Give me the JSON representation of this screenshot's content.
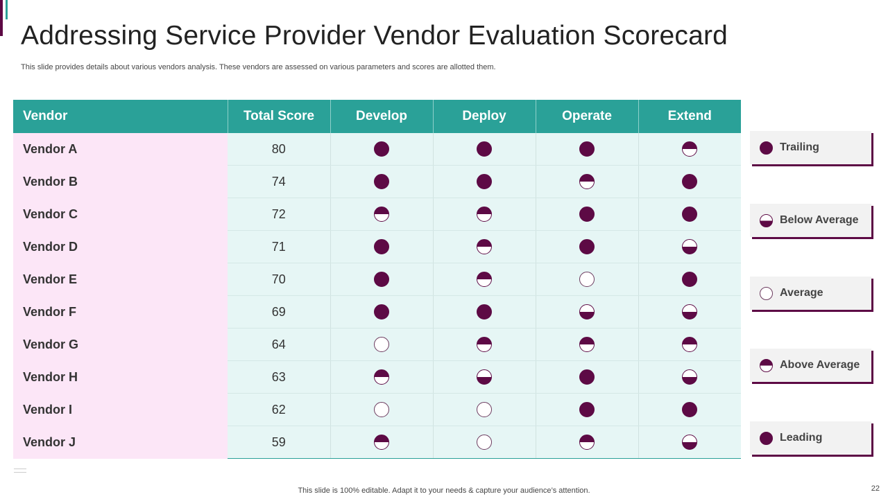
{
  "title": "Addressing Service Provider Vendor Evaluation Scorecard",
  "subtitle": "This slide provides details about various vendors analysis. These vendors are assessed on various parameters and scores are allotted them.",
  "table": {
    "headers": [
      "Vendor",
      "Total Score",
      "Develop",
      "Deploy",
      "Operate",
      "Extend"
    ],
    "rows": [
      {
        "vendor": "Vendor A",
        "score": "80",
        "develop": "leading",
        "deploy": "leading",
        "operate": "leading",
        "extend": "above"
      },
      {
        "vendor": "Vendor B",
        "score": "74",
        "develop": "leading",
        "deploy": "leading",
        "operate": "above",
        "extend": "leading"
      },
      {
        "vendor": "Vendor C",
        "score": "72",
        "develop": "above",
        "deploy": "above",
        "operate": "leading",
        "extend": "leading"
      },
      {
        "vendor": "Vendor D",
        "score": "71",
        "develop": "leading",
        "deploy": "above",
        "operate": "leading",
        "extend": "below"
      },
      {
        "vendor": "Vendor E",
        "score": "70",
        "develop": "leading",
        "deploy": "above",
        "operate": "average",
        "extend": "leading"
      },
      {
        "vendor": "Vendor F",
        "score": "69",
        "develop": "leading",
        "deploy": "leading",
        "operate": "below",
        "extend": "below"
      },
      {
        "vendor": "Vendor G",
        "score": "64",
        "develop": "average",
        "deploy": "above",
        "operate": "above",
        "extend": "above"
      },
      {
        "vendor": "Vendor H",
        "score": "63",
        "develop": "above",
        "deploy": "below",
        "operate": "leading",
        "extend": "below"
      },
      {
        "vendor": "Vendor I",
        "score": "62",
        "develop": "average",
        "deploy": "average",
        "operate": "leading",
        "extend": "leading"
      },
      {
        "vendor": "Vendor J",
        "score": "59",
        "develop": "above",
        "deploy": "average",
        "operate": "above",
        "extend": "below"
      }
    ]
  },
  "legend": [
    {
      "key": "trailing",
      "label": "Trailing"
    },
    {
      "key": "below",
      "label": "Below Average"
    },
    {
      "key": "average",
      "label": "Average"
    },
    {
      "key": "above",
      "label": "Above Average"
    },
    {
      "key": "leading",
      "label": "Leading"
    }
  ],
  "footer": "This slide is 100% editable. Adapt it to your needs & capture your audience’s attention.",
  "page_number": "22",
  "colors": {
    "teal": "#2aa198",
    "plum": "#5d0a45",
    "vendor_bg": "#fce6f7",
    "cell_bg": "#e6f6f5"
  }
}
